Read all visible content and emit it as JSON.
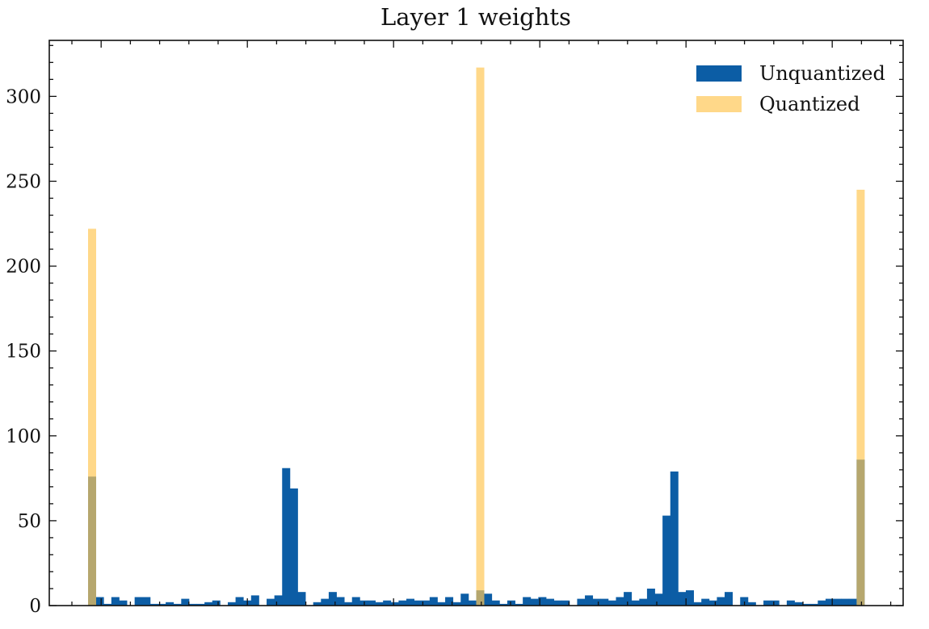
{
  "chart_data": {
    "type": "bar",
    "subtype": "overlaid histogram",
    "title": "Layer 1 weights",
    "xlabel": "",
    "ylabel": "",
    "ylim": [
      0,
      333
    ],
    "yticks": [
      0,
      50,
      100,
      150,
      200,
      250,
      300
    ],
    "x_tick_labels_visible": false,
    "grid": false,
    "legend_position": "upper right",
    "num_bins": 100,
    "series": [
      {
        "name": "Unquantized",
        "color": "#0C5DA5",
        "alpha": 1.0,
        "values": [
          76,
          5,
          1,
          5,
          3,
          0,
          5,
          5,
          1,
          1,
          2,
          1,
          4,
          1,
          1,
          2,
          3,
          0,
          2,
          5,
          3,
          6,
          0,
          4,
          6,
          81,
          69,
          8,
          0,
          2,
          4,
          8,
          5,
          2,
          5,
          3,
          3,
          2,
          3,
          2,
          3,
          4,
          3,
          3,
          5,
          2,
          5,
          2,
          7,
          3,
          9,
          7,
          3,
          1,
          3,
          1,
          5,
          4,
          5,
          4,
          3,
          3,
          0,
          4,
          6,
          4,
          4,
          3,
          5,
          8,
          3,
          4,
          10,
          7,
          53,
          79,
          8,
          9,
          2,
          4,
          3,
          5,
          8,
          0,
          5,
          2,
          0,
          3,
          3,
          0,
          3,
          2,
          1,
          1,
          3,
          4,
          4,
          4,
          4,
          86
        ]
      },
      {
        "name": "Quantized",
        "color": "#FFC857",
        "alpha": 0.7,
        "values": [
          222,
          0,
          0,
          0,
          0,
          0,
          0,
          0,
          0,
          0,
          0,
          0,
          0,
          0,
          0,
          0,
          0,
          0,
          0,
          0,
          0,
          0,
          0,
          0,
          0,
          0,
          0,
          0,
          0,
          0,
          0,
          0,
          0,
          0,
          0,
          0,
          0,
          0,
          0,
          0,
          0,
          0,
          0,
          0,
          0,
          0,
          0,
          0,
          0,
          0,
          317,
          0,
          0,
          0,
          0,
          0,
          0,
          0,
          0,
          0,
          0,
          0,
          0,
          0,
          0,
          0,
          0,
          0,
          0,
          0,
          0,
          0,
          0,
          0,
          0,
          0,
          0,
          0,
          0,
          0,
          0,
          0,
          0,
          0,
          0,
          0,
          0,
          0,
          0,
          0,
          0,
          0,
          0,
          0,
          0,
          0,
          0,
          0,
          0,
          245
        ]
      }
    ]
  },
  "legend": {
    "items": [
      {
        "label": "Unquantized",
        "color": "#0C5DA5"
      },
      {
        "label": "Quantized",
        "color": "#FFC857"
      }
    ]
  }
}
